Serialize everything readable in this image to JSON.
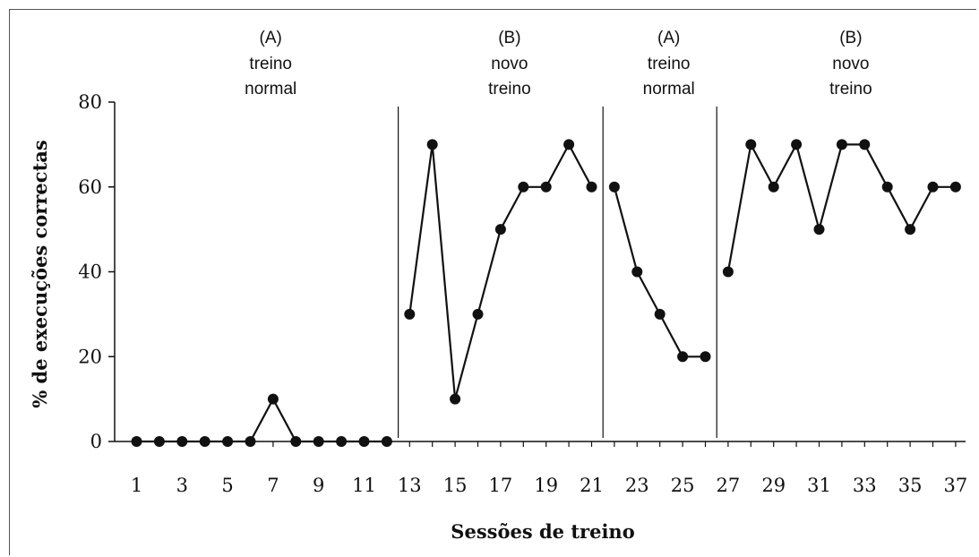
{
  "chart_data": {
    "type": "line",
    "xlabel": "Sessões de treino",
    "ylabel": "% de execuções correctas",
    "ylim": [
      0,
      80
    ],
    "yticks": [
      "0",
      "20",
      "40",
      "60",
      "80"
    ],
    "xlim": [
      1,
      37
    ],
    "xticks": [
      "1",
      "3",
      "5",
      "7",
      "9",
      "11",
      "13",
      "15",
      "17",
      "19",
      "21",
      "23",
      "25",
      "27",
      "29",
      "31",
      "33",
      "35",
      "37"
    ],
    "grid": false,
    "phase_dividers": [
      12.5,
      21.5,
      26.5
    ],
    "phases": [
      {
        "code": "(A)",
        "line1": "treino",
        "line2": "normal",
        "x_start": 1,
        "x_end": 12
      },
      {
        "code": "(B)",
        "line1": "novo",
        "line2": "treino",
        "x_start": 13,
        "x_end": 21
      },
      {
        "code": "(A)",
        "line1": "treino",
        "line2": "normal",
        "x_start": 22,
        "x_end": 26
      },
      {
        "code": "(B)",
        "line1": "novo",
        "line2": "treino",
        "x_start": 27,
        "x_end": 37
      }
    ],
    "series": [
      {
        "x": [
          1,
          2,
          3,
          4,
          5,
          6,
          7,
          8,
          9,
          10,
          11,
          12
        ],
        "values": [
          0,
          0,
          0,
          0,
          0,
          0,
          10,
          0,
          0,
          0,
          0,
          0
        ]
      },
      {
        "x": [
          13,
          14,
          15,
          16,
          17,
          18,
          19,
          20,
          21
        ],
        "values": [
          30,
          70,
          10,
          30,
          50,
          60,
          60,
          70,
          60
        ]
      },
      {
        "x": [
          22,
          23,
          24,
          25,
          26
        ],
        "values": [
          60,
          40,
          30,
          20,
          20
        ]
      },
      {
        "x": [
          27,
          28,
          29,
          30,
          31,
          32,
          33,
          34,
          35,
          36,
          37
        ],
        "values": [
          40,
          70,
          60,
          70,
          50,
          70,
          70,
          60,
          50,
          60,
          60
        ]
      }
    ]
  }
}
